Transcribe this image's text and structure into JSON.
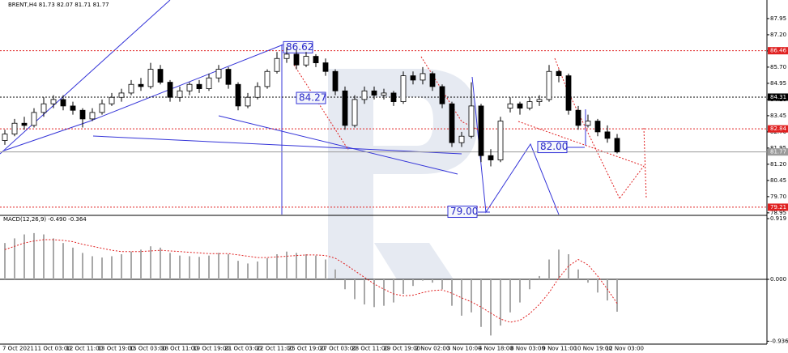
{
  "chart_data": {
    "type": "candlestick",
    "title": "BRENT,H4 81.73 82.07 81.71 81.77",
    "up_color": "#ffffff",
    "down_color": "#000000",
    "ylim": [
      78.87,
      88.81
    ],
    "yticks": [
      87.95,
      {
        "value": 87.2,
        "label": "87.20"
      },
      86.45,
      {
        "value": 85.7,
        "label": "85.70"
      },
      84.95,
      {
        "value": 84.2,
        "label": "84.20"
      },
      83.45,
      {
        "value": 82.7,
        "label": "82.70"
      },
      81.95,
      {
        "value": 81.2,
        "label": "81.20"
      },
      80.45,
      {
        "value": 79.7,
        "label": "79.70"
      },
      78.95
    ],
    "time_labels": [
      "7 Oct 2021",
      "11 Oct 03:00",
      "12 Oct 11:00",
      "13 Oct 19:00",
      "15 Oct 03:00",
      "18 Oct 11:00",
      "19 Oct 19:00",
      "21 Oct 03:00",
      "22 Oct 11:00",
      "25 Oct 19:00",
      "27 Oct 03:00",
      "28 Oct 11:00",
      "29 Oct 19:00",
      "2 Nov 02:00",
      "3 Nov 10:00",
      "4 Nov 18:00",
      "8 Nov 03:00",
      "9 Nov 11:00",
      "10 Nov 19:00",
      "12 Nov 03:00"
    ],
    "candles": [
      [
        82.3,
        82.8,
        82.1,
        82.6
      ],
      [
        82.6,
        83.3,
        82.5,
        83.1
      ],
      [
        83.1,
        83.4,
        82.8,
        83.0
      ],
      [
        83.0,
        83.8,
        82.9,
        83.6
      ],
      [
        83.6,
        84.3,
        83.4,
        84.0
      ],
      [
        84.0,
        84.4,
        83.8,
        84.2
      ],
      [
        84.2,
        84.4,
        83.7,
        83.9
      ],
      [
        83.9,
        84.1,
        83.5,
        83.7
      ],
      [
        83.7,
        83.8,
        82.9,
        83.3
      ],
      [
        83.3,
        83.8,
        83.2,
        83.6
      ],
      [
        83.6,
        84.2,
        83.5,
        84.0
      ],
      [
        84.0,
        84.5,
        83.9,
        84.3
      ],
      [
        84.3,
        84.7,
        84.1,
        84.5
      ],
      [
        84.5,
        85.1,
        84.4,
        84.9
      ],
      [
        84.9,
        85.2,
        84.6,
        84.8
      ],
      [
        84.8,
        85.9,
        84.7,
        85.6
      ],
      [
        85.6,
        85.8,
        84.9,
        85.0
      ],
      [
        85.0,
        85.1,
        84.1,
        84.3
      ],
      [
        84.3,
        84.8,
        84.1,
        84.6
      ],
      [
        84.6,
        85.0,
        84.4,
        84.9
      ],
      [
        84.9,
        85.1,
        84.5,
        84.7
      ],
      [
        84.7,
        85.4,
        84.6,
        85.2
      ],
      [
        85.2,
        85.8,
        85.0,
        85.6
      ],
      [
        85.6,
        85.7,
        84.7,
        84.9
      ],
      [
        84.9,
        85.0,
        83.7,
        83.9
      ],
      [
        83.9,
        84.5,
        83.8,
        84.3
      ],
      [
        84.3,
        85.0,
        84.2,
        84.8
      ],
      [
        84.8,
        85.6,
        84.7,
        85.5
      ],
      [
        85.5,
        86.4,
        85.4,
        86.1
      ],
      [
        86.1,
        86.62,
        85.9,
        86.3
      ],
      [
        86.3,
        86.5,
        85.6,
        85.8
      ],
      [
        85.8,
        86.4,
        85.7,
        86.2
      ],
      [
        86.2,
        86.3,
        85.7,
        85.9
      ],
      [
        85.9,
        86.1,
        85.3,
        85.5
      ],
      [
        85.5,
        85.6,
        84.4,
        84.6
      ],
      [
        84.6,
        84.8,
        82.8,
        83.0
      ],
      [
        83.0,
        84.4,
        82.9,
        84.2
      ],
      [
        84.2,
        84.8,
        84.0,
        84.6
      ],
      [
        84.6,
        84.8,
        84.2,
        84.4
      ],
      [
        84.4,
        84.7,
        84.2,
        84.5
      ],
      [
        84.5,
        84.6,
        83.9,
        84.1
      ],
      [
        84.1,
        85.5,
        84.0,
        85.3
      ],
      [
        85.3,
        85.5,
        84.9,
        85.1
      ],
      [
        85.1,
        85.7,
        84.9,
        85.4
      ],
      [
        85.4,
        85.5,
        84.6,
        84.8
      ],
      [
        84.8,
        84.9,
        83.8,
        84.0
      ],
      [
        84.0,
        84.1,
        82.0,
        82.2
      ],
      [
        82.2,
        82.7,
        82.0,
        82.5
      ],
      [
        82.5,
        85.0,
        82.4,
        83.9
      ],
      [
        83.9,
        84.0,
        81.3,
        81.6
      ],
      [
        81.6,
        81.9,
        81.1,
        81.4
      ],
      [
        81.4,
        83.4,
        81.3,
        83.2
      ],
      [
        83.8,
        84.3,
        83.6,
        84.0
      ],
      [
        84.0,
        84.1,
        83.5,
        83.8
      ],
      [
        83.8,
        84.3,
        83.7,
        84.1
      ],
      [
        84.1,
        84.4,
        83.9,
        84.2
      ],
      [
        84.2,
        85.8,
        84.1,
        85.5
      ],
      [
        85.5,
        85.6,
        85.0,
        85.3
      ],
      [
        85.3,
        85.4,
        83.5,
        83.7
      ],
      [
        83.7,
        83.9,
        82.8,
        83.0
      ],
      [
        83.0,
        83.5,
        82.9,
        83.2
      ],
      [
        83.2,
        83.3,
        82.5,
        82.7
      ],
      [
        82.7,
        83.0,
        82.2,
        82.4
      ],
      [
        82.4,
        82.6,
        81.7,
        81.77
      ]
    ],
    "levels": [
      {
        "value": 86.46,
        "color": "#e02020"
      },
      {
        "value": 84.31,
        "color": "#000000"
      },
      {
        "value": 82.84,
        "color": "#e02020"
      },
      {
        "value": 81.77,
        "color": "#9a9a9a"
      },
      {
        "value": 79.21,
        "color": "#e02020"
      }
    ],
    "annotations": [
      {
        "value": 86.62,
        "label": "86.62"
      },
      {
        "value": 84.27,
        "label": "84.27"
      },
      {
        "value": 82,
        "label": "82.00"
      },
      {
        "value": 79,
        "label": "79.00"
      }
    ],
    "macd": {
      "title": "MACD(12,26,9) -0.490 -0.364",
      "color": "#a8a8a8",
      "signal_color": "#e02020",
      "ylim": [
        -0.98,
        0.956
      ],
      "yticks": [
        0.919,
        {
          "value": 0,
          "label": "0.000"
        },
        {
          "value": -0.936,
          "label": "-0.936"
        }
      ],
      "values": [
        0.55,
        0.62,
        0.68,
        0.7,
        0.68,
        0.62,
        0.55,
        0.48,
        0.4,
        0.35,
        0.33,
        0.35,
        0.38,
        0.42,
        0.45,
        0.5,
        0.48,
        0.4,
        0.36,
        0.35,
        0.34,
        0.36,
        0.4,
        0.38,
        0.28,
        0.24,
        0.27,
        0.32,
        0.38,
        0.42,
        0.4,
        0.38,
        0.36,
        0.3,
        0.15,
        -0.15,
        -0.3,
        -0.38,
        -0.42,
        -0.4,
        -0.35,
        -0.22,
        -0.1,
        -0.02,
        -0.05,
        -0.15,
        -0.4,
        -0.55,
        -0.5,
        -0.72,
        -0.85,
        -0.7,
        -0.5,
        -0.35,
        -0.15,
        0.05,
        0.3,
        0.45,
        0.38,
        0.15,
        -0.05,
        -0.2,
        -0.32,
        -0.49
      ],
      "signal": [
        0.45,
        0.5,
        0.55,
        0.58,
        0.6,
        0.6,
        0.59,
        0.57,
        0.53,
        0.5,
        0.47,
        0.44,
        0.42,
        0.42,
        0.42,
        0.43,
        0.44,
        0.43,
        0.42,
        0.41,
        0.4,
        0.39,
        0.39,
        0.39,
        0.37,
        0.35,
        0.33,
        0.33,
        0.34,
        0.35,
        0.36,
        0.37,
        0.37,
        0.36,
        0.32,
        0.23,
        0.13,
        0.03,
        -0.07,
        -0.15,
        -0.22,
        -0.25,
        -0.24,
        -0.2,
        -0.17,
        -0.16,
        -0.21,
        -0.28,
        -0.34,
        -0.42,
        -0.51,
        -0.6,
        -0.65,
        -0.62,
        -0.52,
        -0.38,
        -0.2,
        0.02,
        0.2,
        0.3,
        0.22,
        0.05,
        -0.15,
        -0.364
      ]
    }
  }
}
